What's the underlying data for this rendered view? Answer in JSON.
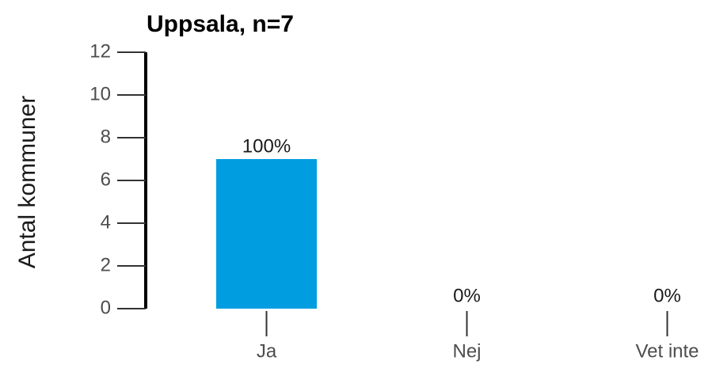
{
  "chart_data": {
    "type": "bar",
    "title": "Uppsala, n=7",
    "ylabel": "Antal kommuner",
    "categories": [
      "Ja",
      "Nej",
      "Vet inte"
    ],
    "values": [
      7,
      0,
      0
    ],
    "value_labels": [
      "100%",
      "0%",
      "0%"
    ],
    "color": "#009ee0",
    "ylim": [
      0,
      12
    ],
    "yticks": [
      0,
      2,
      4,
      6,
      8,
      10,
      12
    ],
    "grid": false
  }
}
